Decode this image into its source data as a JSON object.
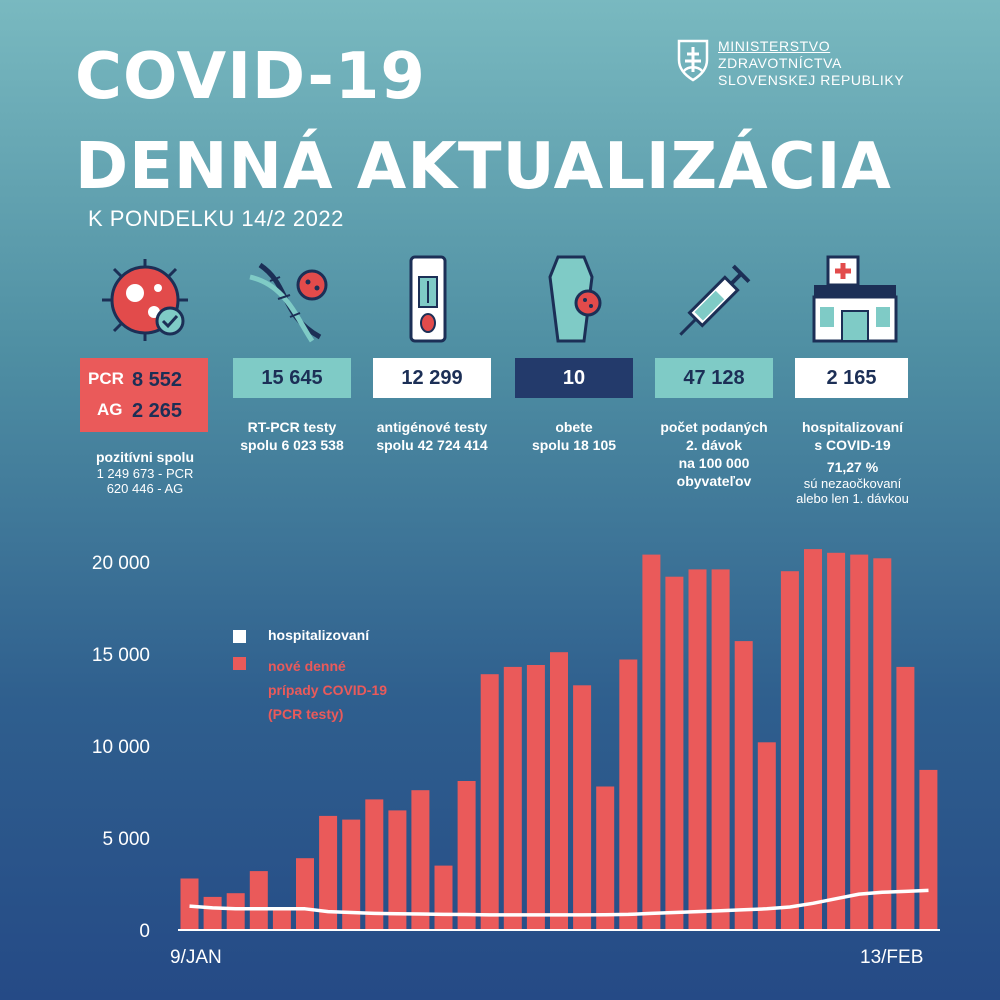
{
  "title_line1": "COVID-19",
  "title_line2": "DENNÁ AKTUALIZÁCIA",
  "date": "K PONDELKU 14/2 2022",
  "ministry": {
    "line1": "MINISTERSTVO",
    "line2": "ZDRAVOTNÍCTVA",
    "line3": "SLOVENSKEJ REPUBLIKY"
  },
  "stats": {
    "positive": {
      "pcr_label": "PCR",
      "pcr_value": "8 552",
      "ag_label": "AG",
      "ag_value": "2 265",
      "desc": "pozitívni spolu",
      "sub1": "1 249 673 - PCR",
      "sub2": "620 446 - AG"
    },
    "rtpcr": {
      "value": "15 645",
      "desc1": "RT-PCR testy",
      "desc2": "spolu 6 023 538"
    },
    "antigen": {
      "value": "12 299",
      "desc1": "antigénové testy",
      "desc2": "spolu  42 724 414"
    },
    "deaths": {
      "value": "10",
      "desc1": "obete",
      "desc2": "spolu 18 105"
    },
    "vaccine": {
      "value": "47 128",
      "desc1": "počet podaných",
      "desc2": "2. dávok",
      "desc3": "na 100 000",
      "desc4": "obyvateľov"
    },
    "hospital": {
      "value": "2 165",
      "desc1": "hospitalizovaní",
      "desc2": "s COVID-19",
      "desc3": "71,27 %",
      "desc4": "sú nezaočkovaní",
      "desc5": "alebo len 1. dávkou"
    }
  },
  "colors": {
    "red": "#ea5a5a",
    "teal": "#7fcbc6",
    "navy": "#233a6b",
    "white": "#ffffff"
  },
  "chart_data": {
    "type": "bar",
    "x_start_label": "9/JAN",
    "x_end_label": "13/FEB",
    "ylim": [
      0,
      20000
    ],
    "yticks": [
      "0",
      "5 000",
      "10 000",
      "15 000",
      "20 000"
    ],
    "ytick_values": [
      0,
      5000,
      10000,
      15000,
      20000
    ],
    "legend": {
      "line1": "hospitalizovaní",
      "line2": "nové denné",
      "line3": "prípady COVID-19",
      "line4": "(PCR testy)"
    },
    "series": [
      {
        "name": "nové denné prípady COVID-19 (PCR testy)",
        "kind": "bar",
        "values": [
          2800,
          1800,
          2000,
          3200,
          1200,
          3900,
          6200,
          6000,
          7100,
          6500,
          7600,
          3500,
          8100,
          13900,
          14300,
          14400,
          15100,
          13300,
          7800,
          14700,
          20400,
          19200,
          19600,
          19600,
          15700,
          10200,
          19500,
          20700,
          20500,
          20400,
          20200,
          14300,
          8700
        ]
      },
      {
        "name": "hospitalizovaní",
        "kind": "line",
        "values": [
          1300,
          1200,
          1150,
          1150,
          1150,
          1150,
          1000,
          950,
          900,
          880,
          870,
          850,
          840,
          820,
          820,
          820,
          820,
          820,
          830,
          850,
          900,
          950,
          1000,
          1050,
          1100,
          1150,
          1250,
          1450,
          1700,
          1950,
          2050,
          2100,
          2150
        ]
      }
    ]
  }
}
